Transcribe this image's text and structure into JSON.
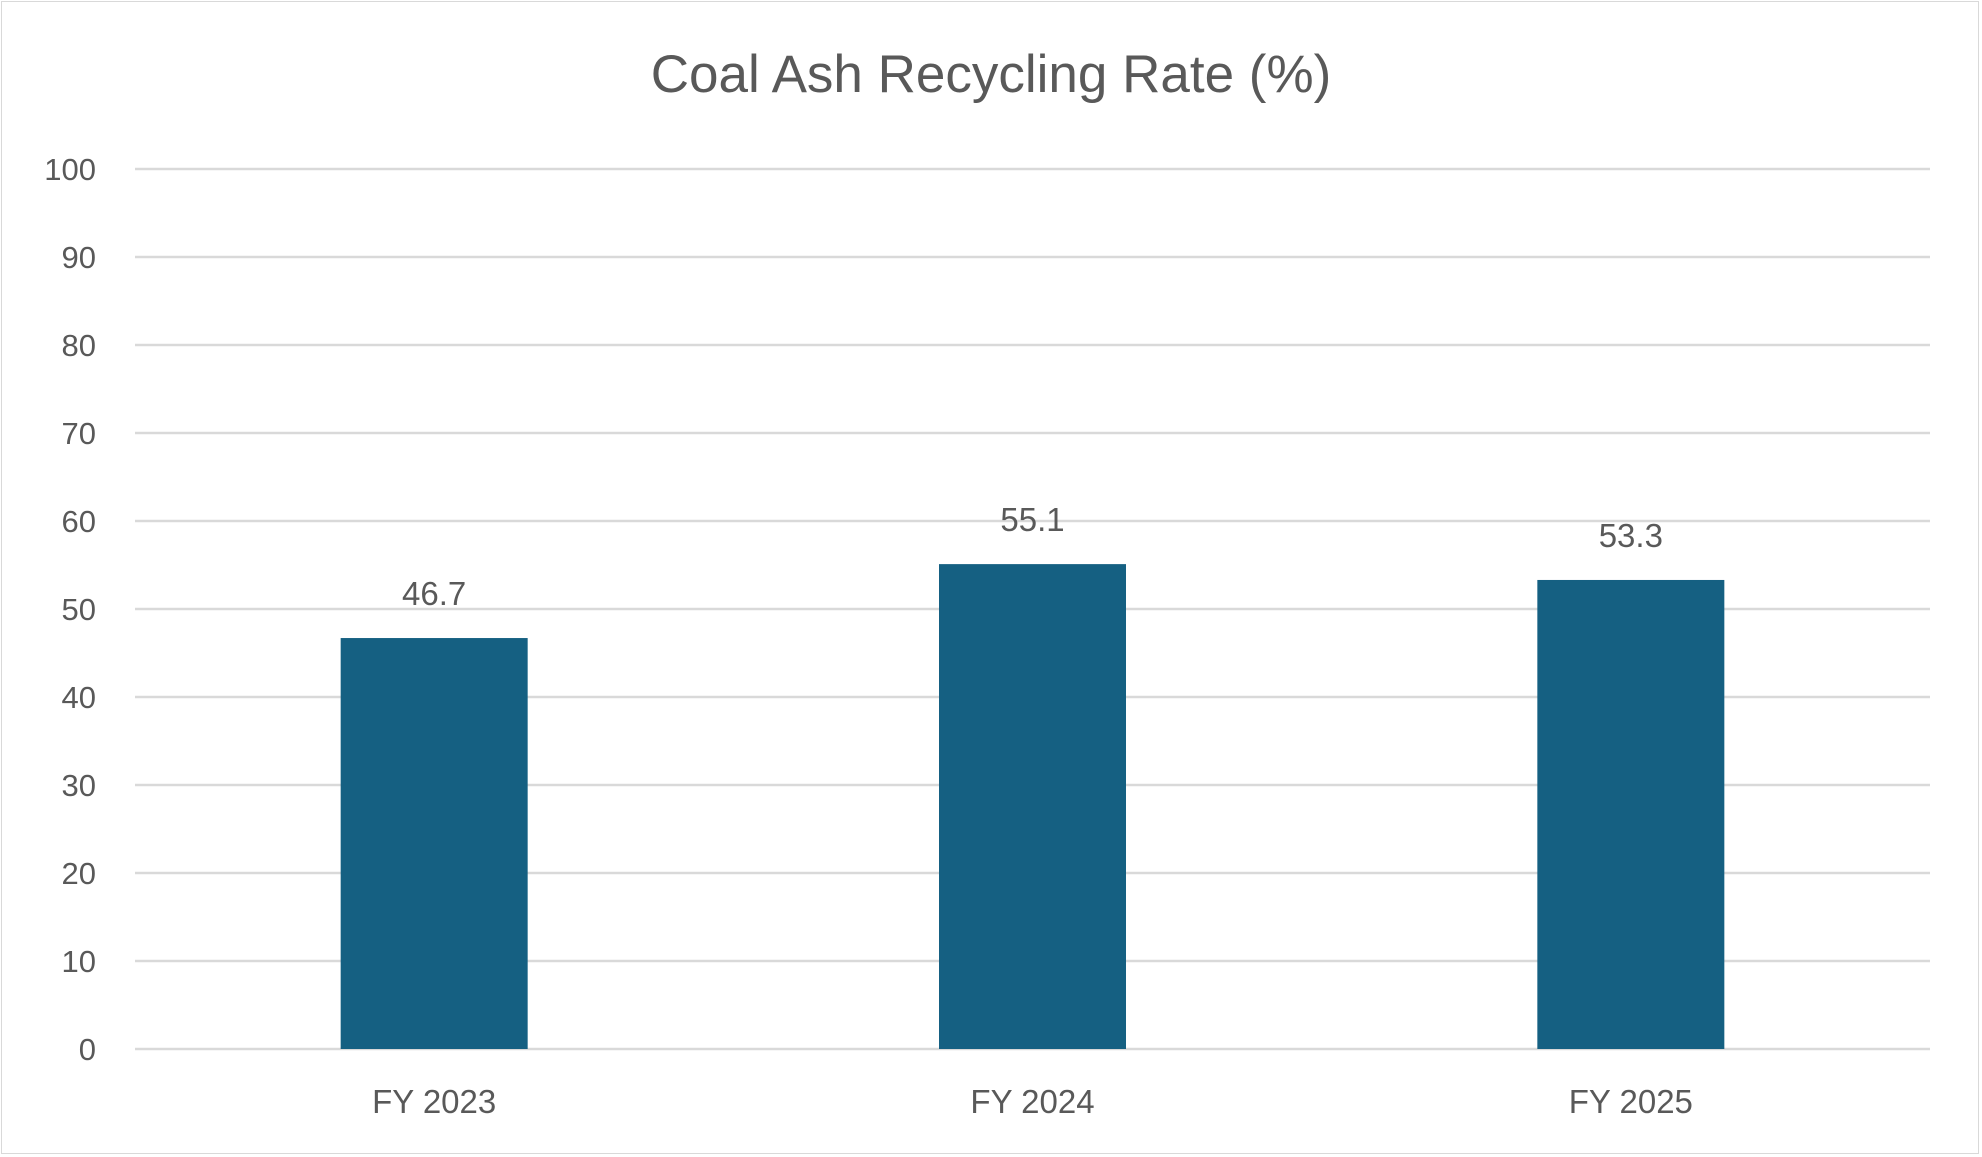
{
  "chart_data": {
    "type": "bar",
    "title": "Coal Ash Recycling Rate (%)",
    "xlabel": "",
    "ylabel": "",
    "categories": [
      "FY 2023",
      "FY 2024",
      "FY 2025"
    ],
    "values": [
      46.7,
      55.1,
      53.3
    ],
    "data_labels": [
      "46.7",
      "55.1",
      "53.3"
    ],
    "ylim": [
      0,
      100
    ],
    "yticks": [
      0,
      10,
      20,
      30,
      40,
      50,
      60,
      70,
      80,
      90,
      100
    ],
    "grid": true,
    "legend": "none",
    "bar_color": "#156082",
    "grid_color": "#d9d9d9",
    "text_color": "#595959"
  }
}
